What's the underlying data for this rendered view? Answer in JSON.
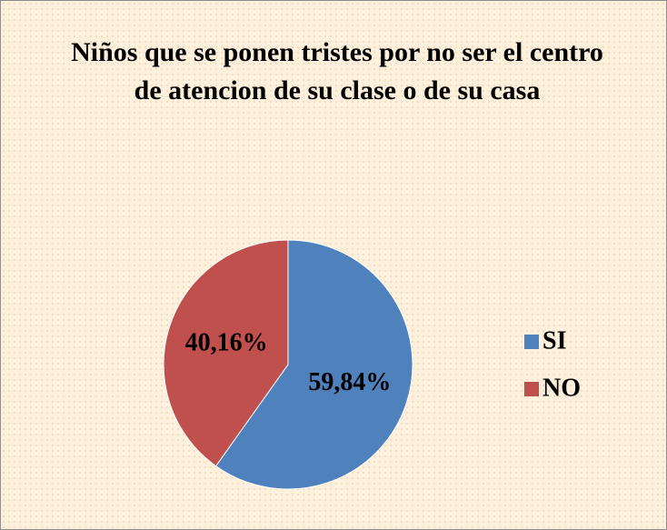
{
  "chart_data": {
    "type": "pie",
    "title": "Niños que se ponen tristes por no ser el centro de atencion de su clase o de su casa",
    "categories": [
      "SI",
      "NO"
    ],
    "values": [
      59.84,
      40.16
    ],
    "value_labels": [
      "59,84%",
      "40,16%"
    ],
    "colors": [
      "#4f81bd",
      "#c0504d"
    ],
    "legend": "right"
  }
}
